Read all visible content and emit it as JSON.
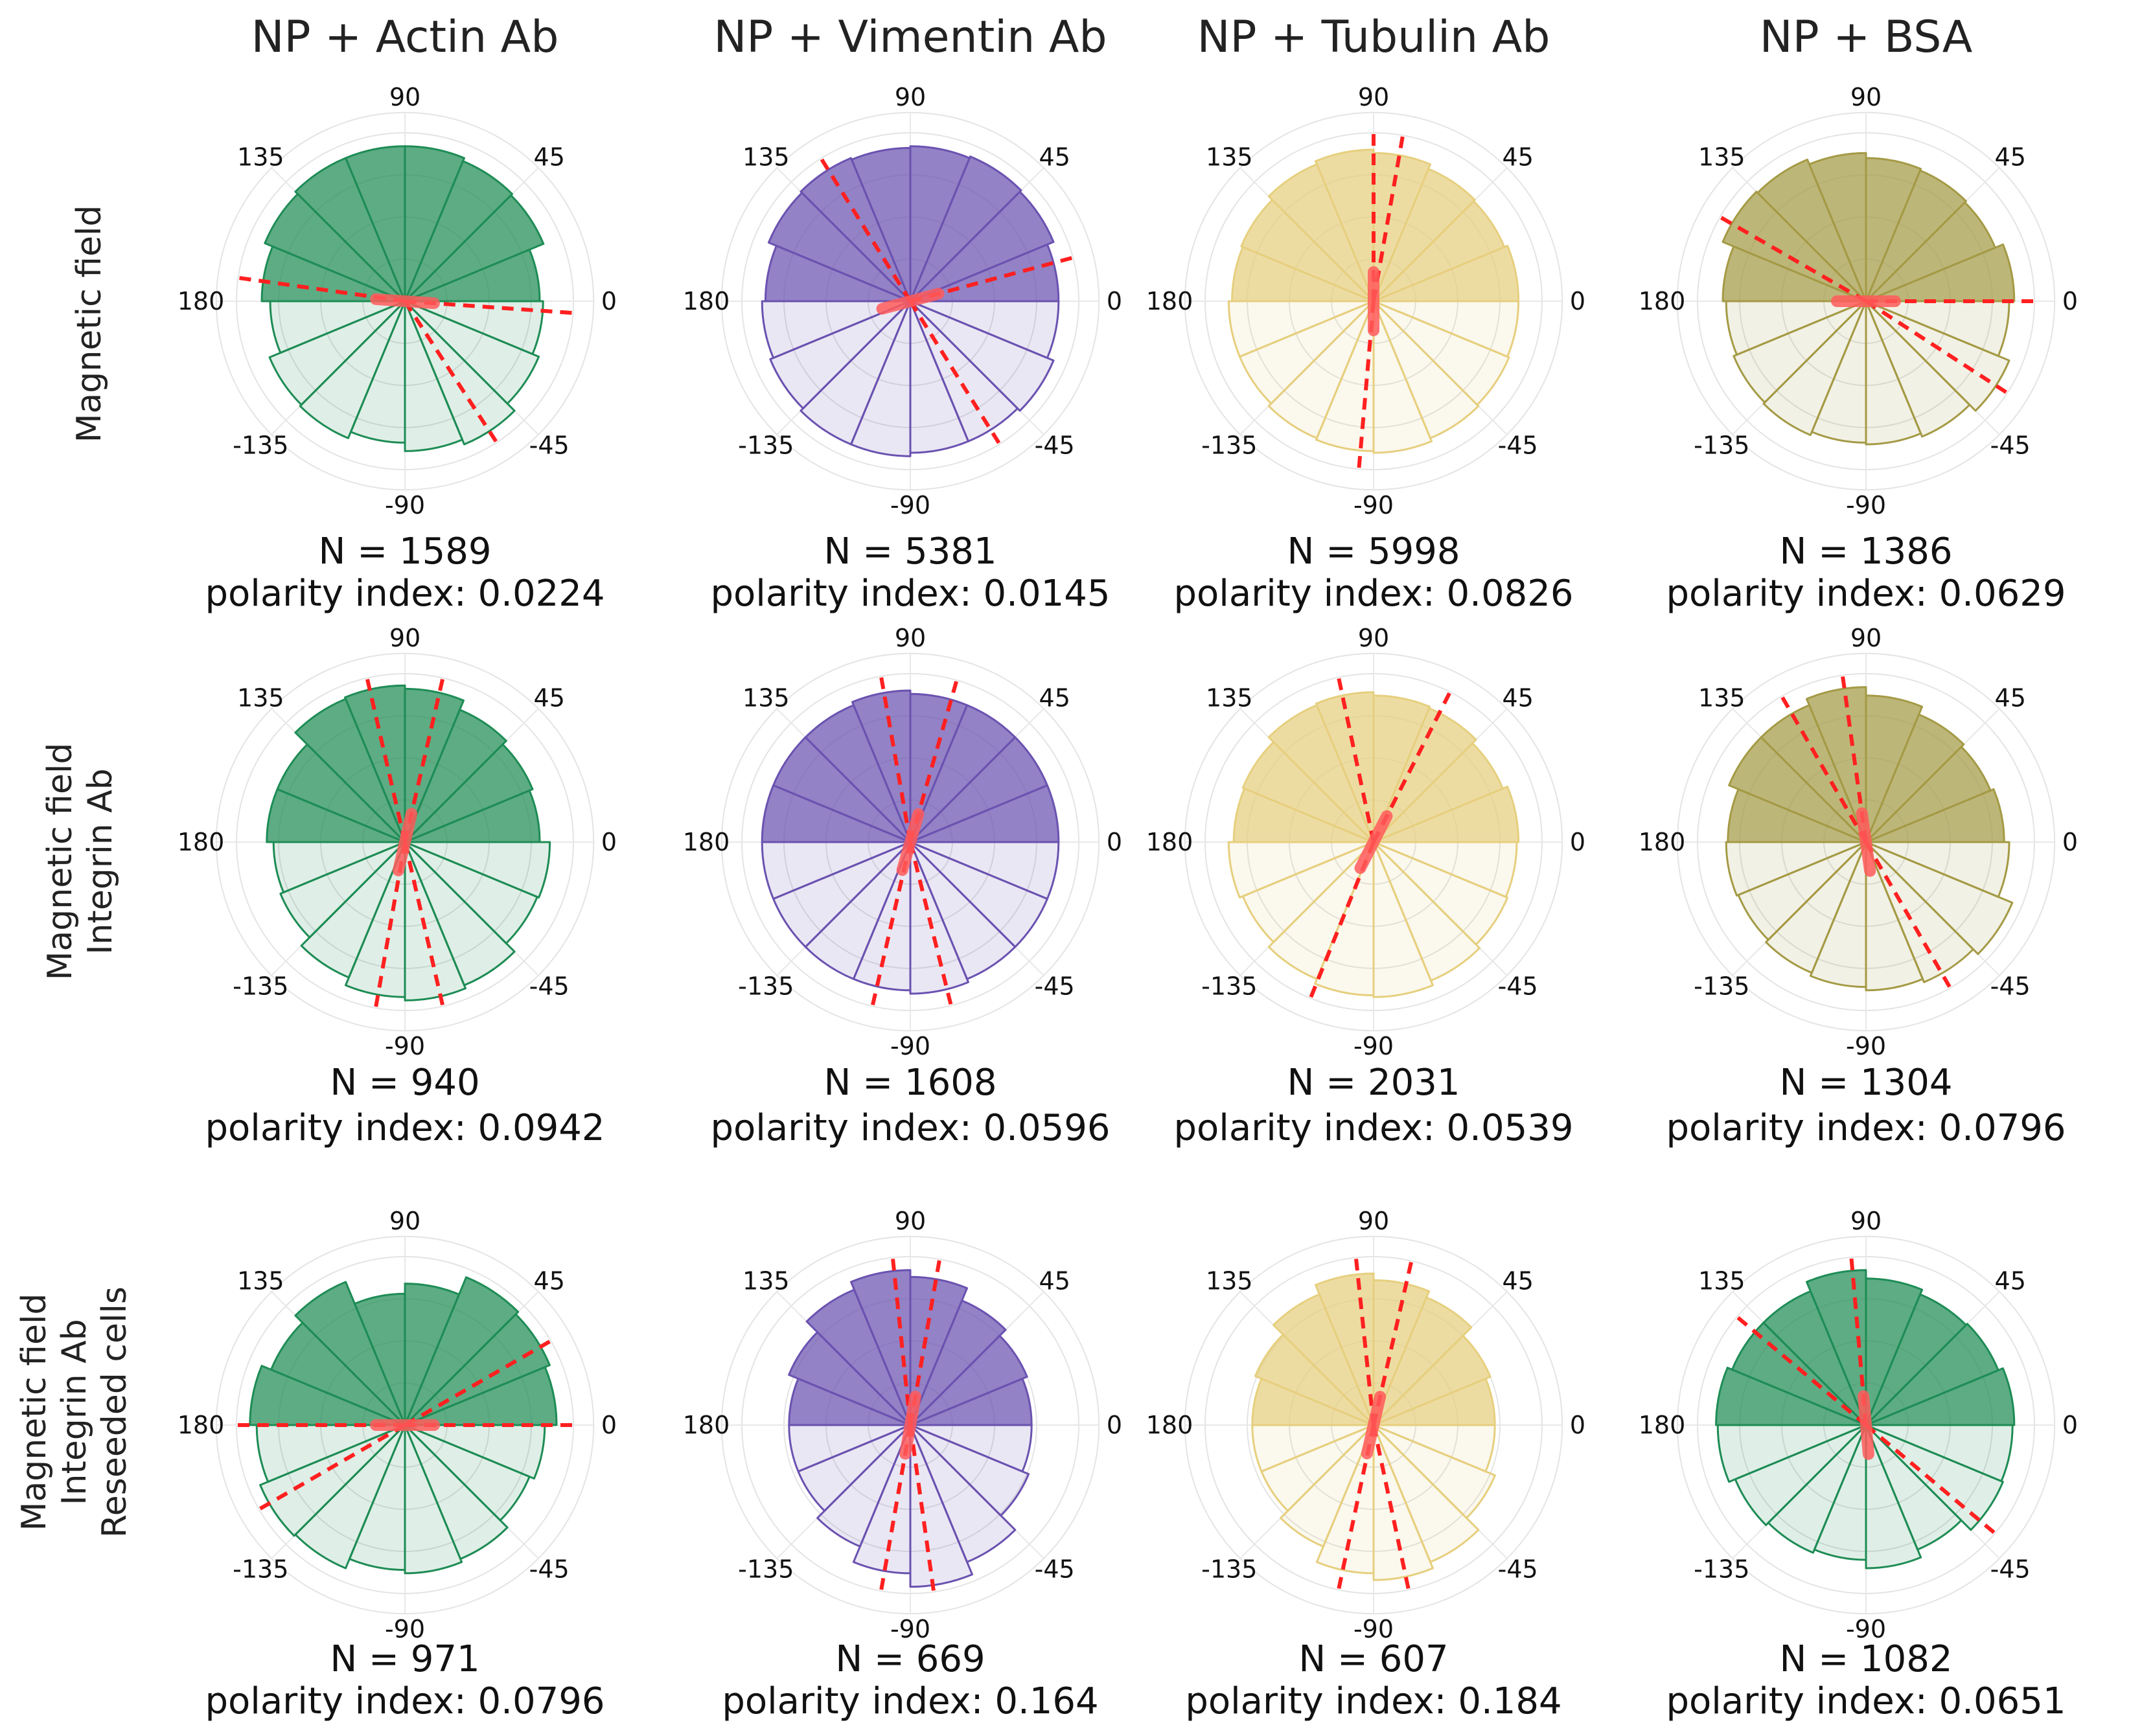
{
  "figure": {
    "column_titles": [
      "NP + Actin Ab",
      "NP + Vimentin Ab",
      "NP + Tubulin Ab",
      "NP + BSA"
    ],
    "row_labels": [
      [
        "Magnetic field"
      ],
      [
        "Magnetic field",
        "Integrin Ab"
      ],
      [
        "Magnetic field",
        "Integrin Ab",
        "Reseeded cells"
      ]
    ],
    "angle_ticks": [
      "0",
      "45",
      "90",
      "135",
      "180",
      "-135",
      "-90",
      "-45"
    ]
  },
  "colors": {
    "green": "#1e8c55",
    "purple": "#6a52b0",
    "yellow": "#e6cf7e",
    "olive": "#a49a45",
    "mean_axis": "#ff2020"
  },
  "chart_data": [
    {
      "type": "polar-histogram",
      "column": "NP + Actin Ab",
      "row": "Magnetic field",
      "color": "green",
      "bin_edges_deg": [
        0,
        22.5,
        45,
        67.5,
        90,
        112.5,
        135,
        157.5,
        180,
        -157.5,
        -135,
        -112.5,
        -90,
        -67.5,
        -45,
        -22.5
      ],
      "values": [
        0.8,
        0.89,
        0.9,
        0.92,
        0.92,
        0.92,
        0.9,
        0.85,
        0.8,
        0.87,
        0.88,
        0.84,
        0.89,
        0.92,
        0.86,
        0.82
      ],
      "dashed_axes_deg": [
        -4,
        -57,
        172
      ],
      "n_label": "N = 1589",
      "pi_label": "polarity index: 0.0224"
    },
    {
      "type": "polar-histogram",
      "column": "NP + Vimentin Ab",
      "row": "Magnetic field",
      "color": "purple",
      "bin_edges_deg": [
        0,
        22.5,
        45,
        67.5,
        90,
        112.5,
        135,
        157.5,
        180,
        -157.5,
        -135,
        -112.5,
        -90,
        -67.5,
        -45,
        -22.5
      ],
      "values": [
        0.88,
        0.92,
        0.93,
        0.92,
        0.91,
        0.92,
        0.91,
        0.86,
        0.88,
        0.9,
        0.92,
        0.92,
        0.9,
        0.9,
        0.92,
        0.88
      ],
      "dashed_axes_deg": [
        15,
        -58,
        122
      ],
      "n_label": "N = 5381",
      "pi_label": "polarity index: 0.0145"
    },
    {
      "type": "polar-histogram",
      "column": "NP + Tubulin Ab",
      "row": "Magnetic field",
      "color": "yellow",
      "bin_edges_deg": [
        0,
        22.5,
        45,
        67.5,
        90,
        112.5,
        135,
        157.5,
        180,
        -157.5,
        -135,
        -112.5,
        -90,
        -67.5,
        -45,
        -22.5
      ],
      "values": [
        0.86,
        0.84,
        0.85,
        0.88,
        0.9,
        0.88,
        0.85,
        0.84,
        0.86,
        0.86,
        0.88,
        0.89,
        0.9,
        0.88,
        0.87,
        0.86
      ],
      "dashed_axes_deg": [
        90,
        80,
        -95
      ],
      "n_label": "N = 5998",
      "pi_label": "polarity index: 0.0826"
    },
    {
      "type": "polar-histogram",
      "column": "NP + BSA",
      "row": "Magnetic field",
      "color": "olive",
      "bin_edges_deg": [
        0,
        22.5,
        45,
        67.5,
        90,
        112.5,
        135,
        157.5,
        180,
        -157.5,
        -135,
        -112.5,
        -90,
        -67.5,
        -45,
        -22.5
      ],
      "values": [
        0.88,
        0.83,
        0.84,
        0.85,
        0.88,
        0.91,
        0.92,
        0.85,
        0.83,
        0.85,
        0.86,
        0.84,
        0.85,
        0.87,
        0.92,
        0.85
      ],
      "dashed_axes_deg": [
        0,
        -33,
        150
      ],
      "n_label": "N = 1386",
      "pi_label": "polarity index: 0.0629"
    },
    {
      "type": "polar-histogram",
      "column": "NP + Actin Ab",
      "row": "Magnetic field / Integrin Ab",
      "color": "green",
      "bin_edges_deg": [
        0,
        22.5,
        45,
        67.5,
        90,
        112.5,
        135,
        157.5,
        180,
        -157.5,
        -135,
        -112.5,
        -90,
        -67.5,
        -45,
        -22.5
      ],
      "values": [
        0.8,
        0.82,
        0.85,
        0.91,
        0.93,
        0.92,
        0.82,
        0.82,
        0.78,
        0.8,
        0.87,
        0.92,
        0.94,
        0.92,
        0.85,
        0.86
      ],
      "dashed_axes_deg": [
        77,
        103,
        -77,
        -100
      ],
      "n_label": "N = 940",
      "pi_label": "polarity index: 0.0942"
    },
    {
      "type": "polar-histogram",
      "column": "NP + Vimentin Ab",
      "row": "Magnetic field / Integrin Ab",
      "color": "purple",
      "bin_edges_deg": [
        0,
        22.5,
        45,
        67.5,
        90,
        112.5,
        135,
        157.5,
        180,
        -157.5,
        -135,
        -112.5,
        -90,
        -67.5,
        -45,
        -22.5
      ],
      "values": [
        0.88,
        0.88,
        0.88,
        0.88,
        0.9,
        0.88,
        0.88,
        0.88,
        0.88,
        0.88,
        0.88,
        0.88,
        0.9,
        0.88,
        0.88,
        0.88
      ],
      "dashed_axes_deg": [
        74,
        100,
        -76,
        -103
      ],
      "n_label": "N = 1608",
      "pi_label": "polarity index: 0.0596"
    },
    {
      "type": "polar-histogram",
      "column": "NP + Tubulin Ab",
      "row": "Magnetic field / Integrin Ab",
      "color": "yellow",
      "bin_edges_deg": [
        0,
        22.5,
        45,
        67.5,
        90,
        112.5,
        135,
        157.5,
        180,
        -157.5,
        -135,
        -112.5,
        -90,
        -67.5,
        -45,
        -22.5
      ],
      "values": [
        0.86,
        0.83,
        0.86,
        0.87,
        0.89,
        0.88,
        0.84,
        0.83,
        0.86,
        0.84,
        0.88,
        0.91,
        0.92,
        0.89,
        0.86,
        0.85
      ],
      "dashed_axes_deg": [
        63,
        102,
        -112
      ],
      "n_label": "N = 2031",
      "pi_label": "polarity index: 0.0539"
    },
    {
      "type": "polar-histogram",
      "column": "NP + BSA",
      "row": "Magnetic field / Integrin Ab",
      "color": "olive",
      "bin_edges_deg": [
        0,
        22.5,
        45,
        67.5,
        90,
        112.5,
        135,
        157.5,
        180,
        -157.5,
        -135,
        -112.5,
        -90,
        -67.5,
        -45,
        -22.5
      ],
      "values": [
        0.82,
        0.8,
        0.82,
        0.87,
        0.92,
        0.88,
        0.88,
        0.82,
        0.83,
        0.82,
        0.84,
        0.86,
        0.88,
        0.9,
        0.94,
        0.85
      ],
      "dashed_axes_deg": [
        98,
        120,
        -60
      ],
      "n_label": "N = 1304",
      "pi_label": "polarity index: 0.0796"
    },
    {
      "type": "polar-histogram",
      "column": "NP + Actin Ab",
      "row": "Magnetic field / Integrin Ab / Reseeded cells",
      "color": "green",
      "bin_edges_deg": [
        0,
        22.5,
        45,
        67.5,
        90,
        112.5,
        135,
        157.5,
        180,
        -157.5,
        -135,
        -112.5,
        -90,
        -67.5,
        -45,
        -22.5
      ],
      "values": [
        0.9,
        0.93,
        0.95,
        0.84,
        0.78,
        0.92,
        0.86,
        0.92,
        0.88,
        0.93,
        0.92,
        0.86,
        0.88,
        0.86,
        0.8,
        0.83
      ],
      "dashed_axes_deg": [
        0,
        180,
        30,
        -150
      ],
      "n_label": "N = 971",
      "pi_label": "polarity index: 0.0796"
    },
    {
      "type": "polar-histogram",
      "column": "NP + Vimentin Ab",
      "row": "Magnetic field / Integrin Ab / Reseeded cells",
      "color": "purple",
      "bin_edges_deg": [
        0,
        22.5,
        45,
        67.5,
        90,
        112.5,
        135,
        157.5,
        180,
        -157.5,
        -135,
        -112.5,
        -90,
        -67.5,
        -45,
        -22.5
      ],
      "values": [
        0.72,
        0.75,
        0.8,
        0.88,
        0.92,
        0.87,
        0.78,
        0.72,
        0.72,
        0.72,
        0.78,
        0.88,
        0.96,
        0.88,
        0.76,
        0.72
      ],
      "dashed_axes_deg": [
        80,
        96,
        -82,
        -100
      ],
      "n_label": "N = 669",
      "pi_label": "polarity index: 0.164"
    },
    {
      "type": "polar-histogram",
      "column": "NP + Tubulin Ab",
      "row": "Magnetic field / Integrin Ab / Reseeded cells",
      "color": "yellow",
      "bin_edges_deg": [
        0,
        22.5,
        45,
        67.5,
        90,
        112.5,
        135,
        157.5,
        180,
        -157.5,
        -135,
        -112.5,
        -90,
        -67.5,
        -45,
        -22.5
      ],
      "values": [
        0.72,
        0.75,
        0.82,
        0.86,
        0.9,
        0.84,
        0.76,
        0.72,
        0.72,
        0.72,
        0.78,
        0.88,
        0.92,
        0.88,
        0.78,
        0.72
      ],
      "dashed_axes_deg": [
        77,
        96,
        -78,
        -102
      ],
      "n_label": "N = 607",
      "pi_label": "polarity index: 0.184"
    },
    {
      "type": "polar-histogram",
      "column": "NP + BSA",
      "row": "Magnetic field / Integrin Ab / Reseeded cells",
      "color": "green",
      "bin_edges_deg": [
        0,
        22.5,
        45,
        67.5,
        90,
        112.5,
        135,
        157.5,
        180,
        -157.5,
        -135,
        -112.5,
        -90,
        -67.5,
        -45,
        -22.5
      ],
      "values": [
        0.88,
        0.85,
        0.84,
        0.87,
        0.92,
        0.86,
        0.86,
        0.89,
        0.88,
        0.84,
        0.82,
        0.8,
        0.85,
        0.8,
        0.88,
        0.87
      ],
      "dashed_axes_deg": [
        95,
        -40,
        140
      ],
      "n_label": "N = 1082",
      "pi_label": "polarity index: 0.0651"
    }
  ]
}
